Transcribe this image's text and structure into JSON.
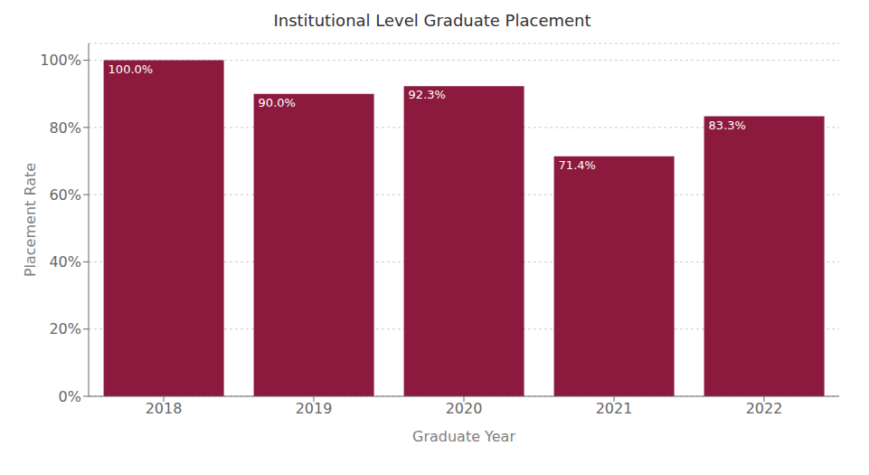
{
  "chart_data": {
    "type": "bar",
    "title": "Institutional Level Graduate Placement",
    "xlabel": "Graduate Year",
    "ylabel": "Placement Rate",
    "categories": [
      "2018",
      "2019",
      "2020",
      "2021",
      "2022"
    ],
    "values": [
      100.0,
      90.0,
      92.3,
      71.4,
      83.3
    ],
    "value_labels": [
      "100.0%",
      "90.0%",
      "92.3%",
      "71.4%",
      "83.3%"
    ],
    "data_labels": true,
    "color": "#8B1A3E",
    "ylim": [
      0,
      105
    ],
    "yticks": [
      {
        "value": 0,
        "label": "0%"
      },
      {
        "value": 20,
        "label": "20%"
      },
      {
        "value": 40,
        "label": "40%"
      },
      {
        "value": 60,
        "label": "60%"
      },
      {
        "value": 80,
        "label": "80%"
      },
      {
        "value": 100,
        "label": "100%"
      }
    ],
    "grid": true
  }
}
